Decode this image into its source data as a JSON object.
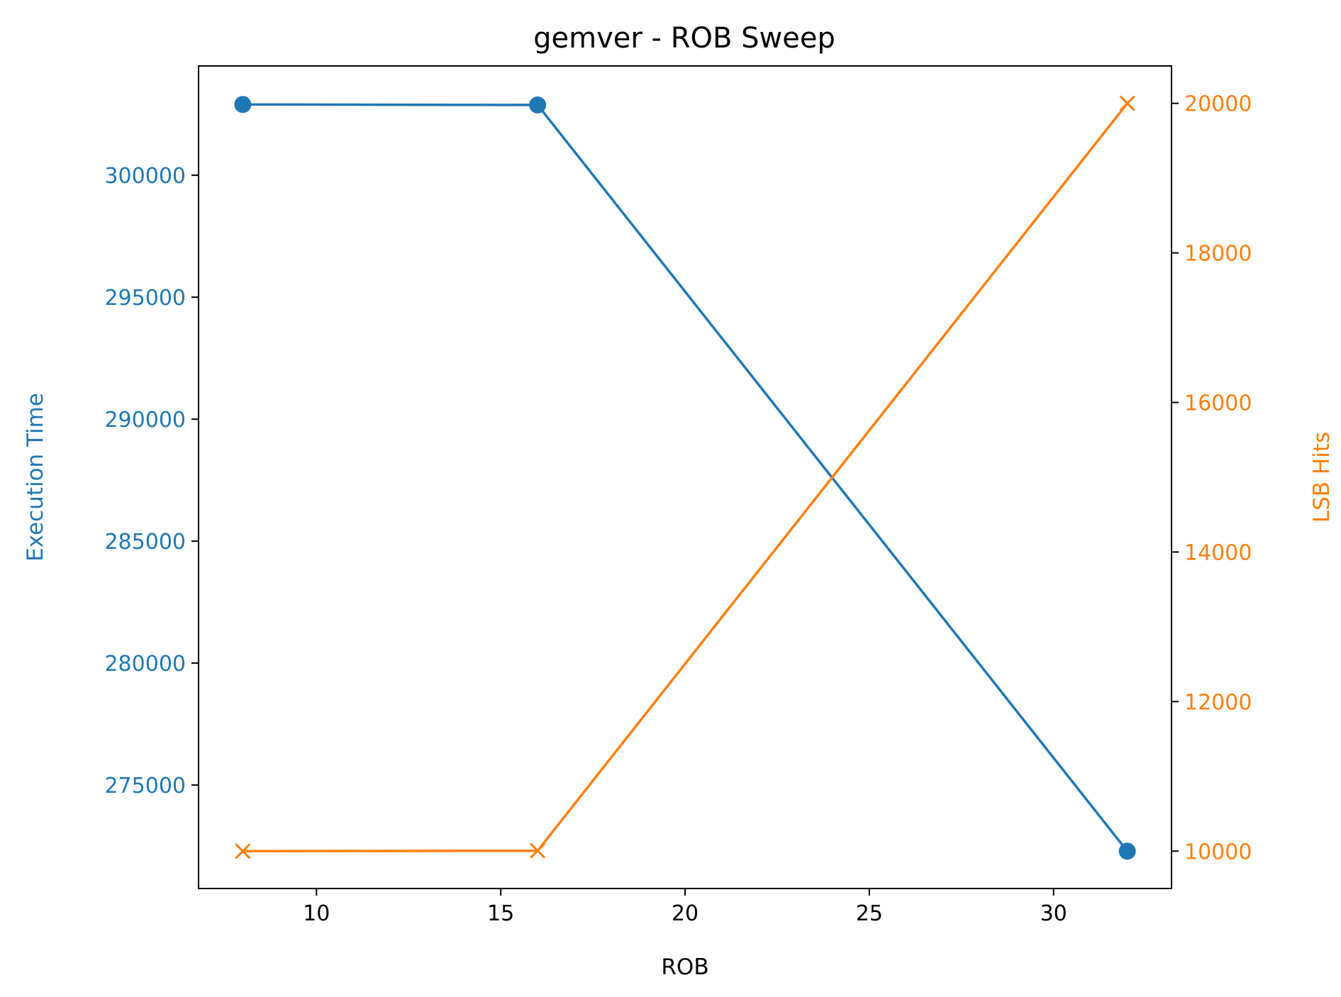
{
  "chart_data": {
    "type": "line",
    "title": "gemver - ROB Sweep",
    "xlabel": "ROB",
    "x": [
      8,
      16,
      32
    ],
    "xlim": [
      6.8,
      33.2
    ],
    "xticks": [
      10,
      15,
      20,
      25,
      30
    ],
    "grid": false,
    "legend": "none",
    "axes": {
      "left": {
        "label": "Execution Time",
        "color": "#1f77b4",
        "ylim": [
          270760,
          304480
        ],
        "ticks": [
          275000,
          280000,
          285000,
          290000,
          295000,
          300000
        ]
      },
      "right": {
        "label": "LSB Hits",
        "color": "#ff7f0e",
        "ylim": [
          9500,
          20500
        ],
        "ticks": [
          10000,
          12000,
          14000,
          16000,
          18000,
          20000
        ]
      }
    },
    "series": [
      {
        "axis": "left",
        "marker": "circle",
        "color": "#1f77b4",
        "values": [
          302900,
          302880,
          272290
        ]
      },
      {
        "axis": "right",
        "marker": "x",
        "color": "#ff7f0e",
        "values": [
          10000,
          10005,
          20000
        ]
      }
    ]
  }
}
